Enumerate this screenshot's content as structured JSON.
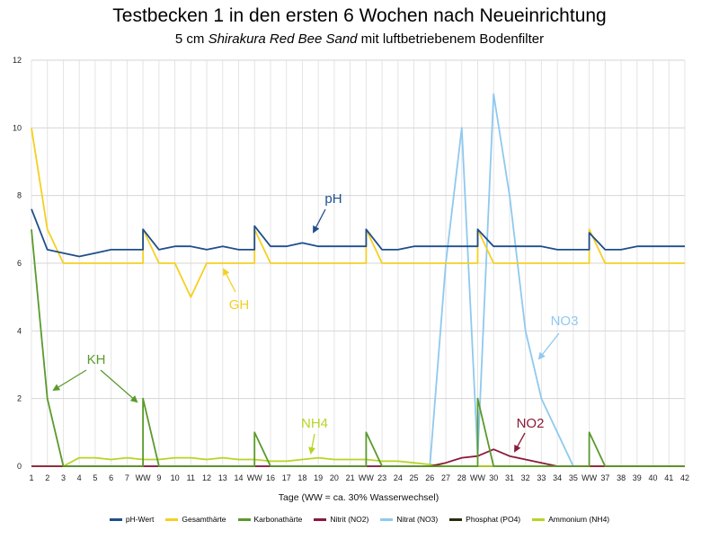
{
  "chart_data": {
    "type": "line",
    "title": "Testbecken 1 in den ersten 6 Wochen nach Neueinrichtung",
    "subtitle_pre": "5 cm ",
    "subtitle_italic": "Shirakura Red Bee Sand",
    "subtitle_post": " mit luftbetriebenem Bodenfilter",
    "xlabel": "Tage (WW = ca. 30% Wasserwechsel)",
    "ylim": [
      0,
      12
    ],
    "yticks": [
      "0",
      "2",
      "4",
      "6",
      "8",
      "10",
      "12"
    ],
    "grid": true,
    "legend_position": "bottom",
    "x_ticks": [
      "1",
      "2",
      "3",
      "4",
      "5",
      "6",
      "7",
      "WW",
      "9",
      "10",
      "11",
      "12",
      "13",
      "14",
      "WW",
      "16",
      "17",
      "18",
      "19",
      "20",
      "21",
      "WW",
      "23",
      "24",
      "25",
      "26",
      "27",
      "28",
      "WW",
      "30",
      "31",
      "32",
      "33",
      "34",
      "35",
      "WW",
      "37",
      "38",
      "39",
      "40",
      "41",
      "42"
    ],
    "series": [
      {
        "name": "pH-Wert",
        "color": "#1f4e8c",
        "points": [
          [
            1,
            7.6
          ],
          [
            2,
            6.4
          ],
          [
            3,
            6.3
          ],
          [
            4,
            6.2
          ],
          [
            5,
            6.3
          ],
          [
            6,
            6.4
          ],
          [
            7,
            6.4
          ],
          [
            8,
            6.4
          ],
          [
            8,
            7.0
          ],
          [
            9,
            6.4
          ],
          [
            10,
            6.5
          ],
          [
            11,
            6.5
          ],
          [
            12,
            6.4
          ],
          [
            13,
            6.5
          ],
          [
            14,
            6.4
          ],
          [
            15,
            6.4
          ],
          [
            15,
            7.1
          ],
          [
            16,
            6.5
          ],
          [
            17,
            6.5
          ],
          [
            18,
            6.6
          ],
          [
            19,
            6.5
          ],
          [
            20,
            6.5
          ],
          [
            21,
            6.5
          ],
          [
            22,
            6.5
          ],
          [
            22,
            7.0
          ],
          [
            23,
            6.4
          ],
          [
            24,
            6.4
          ],
          [
            25,
            6.5
          ],
          [
            26,
            6.5
          ],
          [
            27,
            6.5
          ],
          [
            28,
            6.5
          ],
          [
            29,
            6.5
          ],
          [
            29,
            7.0
          ],
          [
            30,
            6.5
          ],
          [
            31,
            6.5
          ],
          [
            32,
            6.5
          ],
          [
            33,
            6.5
          ],
          [
            34,
            6.4
          ],
          [
            35,
            6.4
          ],
          [
            36,
            6.4
          ],
          [
            36,
            6.9
          ],
          [
            37,
            6.4
          ],
          [
            38,
            6.4
          ],
          [
            39,
            6.5
          ],
          [
            40,
            6.5
          ],
          [
            41,
            6.5
          ],
          [
            42,
            6.5
          ]
        ]
      },
      {
        "name": "Gesamthärte",
        "color": "#f5d020",
        "points": [
          [
            1,
            10
          ],
          [
            2,
            7
          ],
          [
            3,
            6
          ],
          [
            4,
            6
          ],
          [
            5,
            6
          ],
          [
            6,
            6
          ],
          [
            7,
            6
          ],
          [
            8,
            6
          ],
          [
            8,
            7
          ],
          [
            9,
            6
          ],
          [
            10,
            6
          ],
          [
            11,
            5
          ],
          [
            12,
            6
          ],
          [
            13,
            6
          ],
          [
            14,
            6
          ],
          [
            15,
            6
          ],
          [
            15,
            7
          ],
          [
            16,
            6
          ],
          [
            17,
            6
          ],
          [
            18,
            6
          ],
          [
            19,
            6
          ],
          [
            20,
            6
          ],
          [
            21,
            6
          ],
          [
            22,
            6
          ],
          [
            22,
            7
          ],
          [
            23,
            6
          ],
          [
            24,
            6
          ],
          [
            25,
            6
          ],
          [
            26,
            6
          ],
          [
            27,
            6
          ],
          [
            28,
            6
          ],
          [
            29,
            6
          ],
          [
            29,
            7
          ],
          [
            30,
            6
          ],
          [
            31,
            6
          ],
          [
            32,
            6
          ],
          [
            33,
            6
          ],
          [
            34,
            6
          ],
          [
            35,
            6
          ],
          [
            36,
            6
          ],
          [
            36,
            7
          ],
          [
            37,
            6
          ],
          [
            38,
            6
          ],
          [
            39,
            6
          ],
          [
            40,
            6
          ],
          [
            41,
            6
          ],
          [
            42,
            6
          ]
        ]
      },
      {
        "name": "Karbonathärte",
        "color": "#5a9a2c",
        "points": [
          [
            1,
            7
          ],
          [
            2,
            2
          ],
          [
            3,
            0
          ],
          [
            4,
            0
          ],
          [
            5,
            0
          ],
          [
            6,
            0
          ],
          [
            7,
            0
          ],
          [
            8,
            0
          ],
          [
            8,
            2
          ],
          [
            9,
            0
          ],
          [
            10,
            0
          ],
          [
            11,
            0
          ],
          [
            12,
            0
          ],
          [
            13,
            0
          ],
          [
            14,
            0
          ],
          [
            15,
            0
          ],
          [
            15,
            1
          ],
          [
            16,
            0
          ],
          [
            17,
            0
          ],
          [
            18,
            0
          ],
          [
            19,
            0
          ],
          [
            20,
            0
          ],
          [
            21,
            0
          ],
          [
            22,
            0
          ],
          [
            22,
            1
          ],
          [
            23,
            0
          ],
          [
            24,
            0
          ],
          [
            25,
            0
          ],
          [
            26,
            0
          ],
          [
            27,
            0
          ],
          [
            28,
            0
          ],
          [
            29,
            0
          ],
          [
            29,
            2
          ],
          [
            30,
            0
          ],
          [
            31,
            0
          ],
          [
            32,
            0
          ],
          [
            33,
            0
          ],
          [
            34,
            0
          ],
          [
            35,
            0
          ],
          [
            36,
            0
          ],
          [
            36,
            1
          ],
          [
            37,
            0
          ],
          [
            38,
            0
          ],
          [
            39,
            0
          ],
          [
            40,
            0
          ],
          [
            41,
            0
          ],
          [
            42,
            0
          ]
        ]
      },
      {
        "name": "Nitrit (NO2)",
        "color": "#8b1a3a",
        "points": [
          [
            1,
            0
          ],
          [
            26,
            0
          ],
          [
            27,
            0.1
          ],
          [
            28,
            0.25
          ],
          [
            29,
            0.3
          ],
          [
            30,
            0.5
          ],
          [
            31,
            0.3
          ],
          [
            32,
            0.2
          ],
          [
            33,
            0.1
          ],
          [
            34,
            0
          ],
          [
            42,
            0
          ]
        ]
      },
      {
        "name": "Nitrat (NO3)",
        "color": "#8fc9ef",
        "points": [
          [
            1,
            0
          ],
          [
            26,
            0
          ],
          [
            27,
            6
          ],
          [
            28,
            10
          ],
          [
            29,
            0.3
          ],
          [
            30,
            11
          ],
          [
            31,
            8
          ],
          [
            32,
            4
          ],
          [
            33,
            2
          ],
          [
            34,
            1
          ],
          [
            35,
            0
          ],
          [
            42,
            0
          ]
        ]
      },
      {
        "name": "Phosphat (PO4)",
        "color": "#2b2b10",
        "points": [
          [
            1,
            0
          ],
          [
            42,
            0
          ]
        ]
      },
      {
        "name": "Ammonium (NH4)",
        "color": "#b8d424",
        "points": [
          [
            1,
            0
          ],
          [
            2,
            0
          ],
          [
            3,
            0
          ],
          [
            4,
            0.25
          ],
          [
            5,
            0.25
          ],
          [
            6,
            0.2
          ],
          [
            7,
            0.25
          ],
          [
            8,
            0.2
          ],
          [
            9,
            0.2
          ],
          [
            10,
            0.25
          ],
          [
            11,
            0.25
          ],
          [
            12,
            0.2
          ],
          [
            13,
            0.25
          ],
          [
            14,
            0.2
          ],
          [
            15,
            0.2
          ],
          [
            16,
            0.15
          ],
          [
            17,
            0.15
          ],
          [
            18,
            0.2
          ],
          [
            19,
            0.25
          ],
          [
            20,
            0.2
          ],
          [
            21,
            0.2
          ],
          [
            22,
            0.2
          ],
          [
            23,
            0.15
          ],
          [
            24,
            0.15
          ],
          [
            25,
            0.1
          ],
          [
            26,
            0.05
          ],
          [
            27,
            0
          ],
          [
            42,
            0
          ]
        ]
      }
    ],
    "annotations": [
      {
        "text": "pH",
        "color": "#1f4e8c"
      },
      {
        "text": "GH",
        "color": "#f5d020"
      },
      {
        "text": "KH",
        "color": "#5a9a2c"
      },
      {
        "text": "NH4",
        "color": "#b8d424"
      },
      {
        "text": "NO3",
        "color": "#8fc9ef"
      },
      {
        "text": "NO2",
        "color": "#8b1a3a"
      }
    ]
  }
}
